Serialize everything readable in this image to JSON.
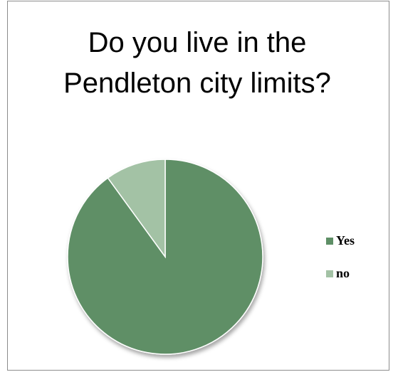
{
  "chart_data": {
    "type": "pie",
    "title": "Do you live in the Pendleton city limits?",
    "categories": [
      "Yes",
      "no"
    ],
    "values": [
      90,
      10
    ],
    "colors": [
      "#5e8f66",
      "#a3c2a5"
    ],
    "legend": "right"
  }
}
